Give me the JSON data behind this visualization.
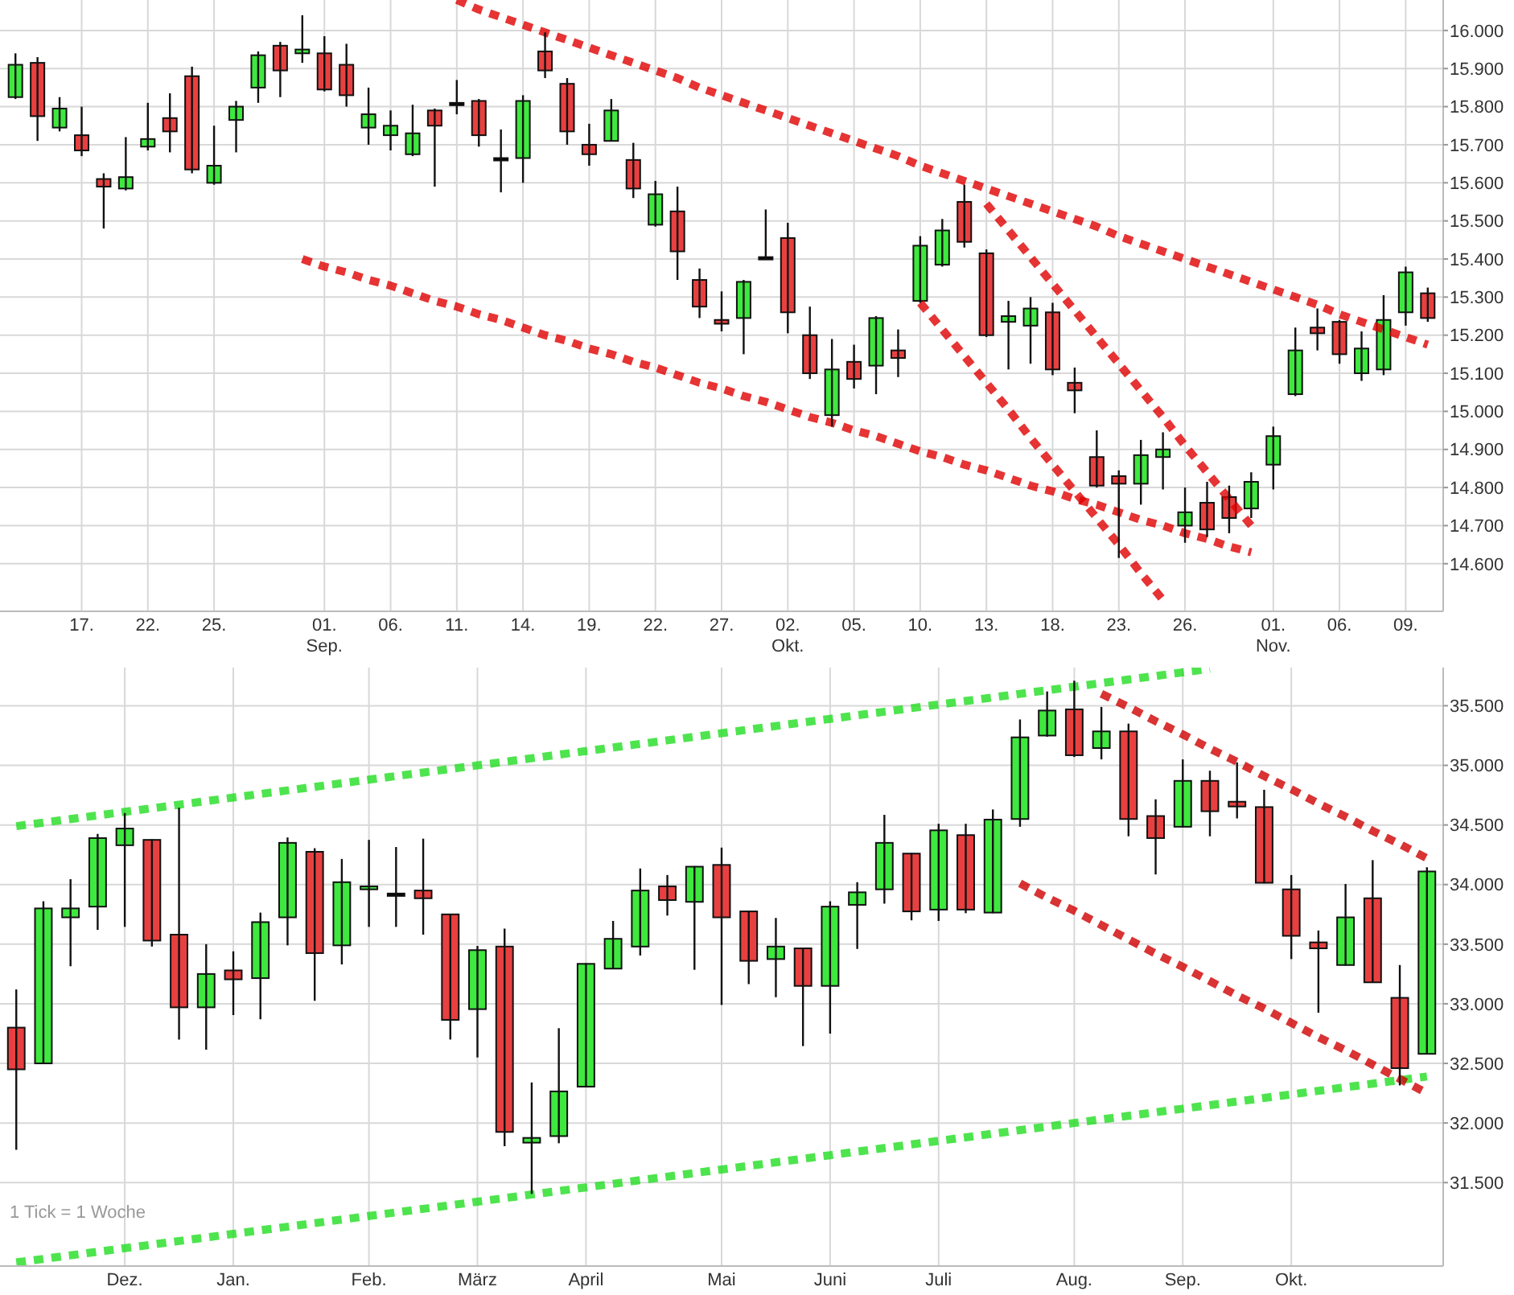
{
  "chart_data": [
    {
      "type": "candlestick",
      "categories": [
        null,
        null,
        null,
        "17.",
        null,
        null,
        "22.",
        null,
        null,
        "25.",
        null,
        null,
        null,
        null,
        "01.\nSep.",
        null,
        null,
        "06.",
        null,
        null,
        "11.",
        null,
        null,
        "14.",
        null,
        null,
        "19.",
        null,
        null,
        "22.",
        null,
        null,
        "27.",
        null,
        null,
        "02.\nOkt.",
        null,
        null,
        "05.",
        null,
        null,
        "10.",
        null,
        null,
        "13.",
        null,
        null,
        "18.",
        null,
        null,
        "23.",
        null,
        null,
        "26.",
        null,
        null,
        null,
        "01.\nNov.",
        null,
        null,
        "06.",
        null,
        null,
        "09.",
        null
      ],
      "ohlc": [
        [
          15825,
          15940,
          15820,
          15910
        ],
        [
          15915,
          15930,
          15710,
          15775
        ],
        [
          15745,
          15825,
          15735,
          15795
        ],
        [
          15725,
          15800,
          15670,
          15685
        ],
        [
          15610,
          15625,
          15480,
          15590
        ],
        [
          15585,
          15720,
          15580,
          15615
        ],
        [
          15695,
          15810,
          15685,
          15715
        ],
        [
          15770,
          15835,
          15680,
          15735
        ],
        [
          15880,
          15905,
          15625,
          15635
        ],
        [
          15600,
          15750,
          15595,
          15645
        ],
        [
          15765,
          15815,
          15680,
          15800
        ],
        [
          15850,
          15945,
          15810,
          15935
        ],
        [
          15960,
          15970,
          15825,
          15895
        ],
        [
          15940,
          16040,
          15915,
          15950
        ],
        [
          15940,
          15985,
          15840,
          15845
        ],
        [
          15910,
          15965,
          15800,
          15830
        ],
        [
          15745,
          15850,
          15700,
          15780
        ],
        [
          15725,
          15790,
          15685,
          15750
        ],
        [
          15675,
          15805,
          15670,
          15730
        ],
        [
          15790,
          15795,
          15590,
          15750
        ],
        [
          15810,
          15870,
          15780,
          15810
        ],
        [
          15815,
          15820,
          15695,
          15725
        ],
        [
          15665,
          15740,
          15575,
          15665
        ],
        [
          15665,
          15830,
          15600,
          15815
        ],
        [
          15945,
          15995,
          15875,
          15895
        ],
        [
          15860,
          15875,
          15700,
          15735
        ],
        [
          15700,
          15755,
          15645,
          15675
        ],
        [
          15710,
          15820,
          15710,
          15790
        ],
        [
          15660,
          15705,
          15560,
          15585
        ],
        [
          15490,
          15605,
          15485,
          15570
        ],
        [
          15525,
          15590,
          15345,
          15420
        ],
        [
          15345,
          15375,
          15245,
          15275
        ],
        [
          15240,
          15315,
          15210,
          15230
        ],
        [
          15245,
          15345,
          15150,
          15340
        ],
        [
          15405,
          15530,
          15400,
          15405
        ],
        [
          15455,
          15495,
          15205,
          15260
        ],
        [
          15200,
          15275,
          15085,
          15100
        ],
        [
          14990,
          15190,
          14960,
          15110
        ],
        [
          15130,
          15175,
          15060,
          15085
        ],
        [
          15120,
          15250,
          15045,
          15245
        ],
        [
          15160,
          15215,
          15090,
          15140
        ],
        [
          15290,
          15460,
          15285,
          15435
        ],
        [
          15385,
          15505,
          15380,
          15475
        ],
        [
          15550,
          15595,
          15430,
          15445
        ],
        [
          15415,
          15425,
          15195,
          15200
        ],
        [
          15235,
          15290,
          15110,
          15250
        ],
        [
          15225,
          15300,
          15125,
          15270
        ],
        [
          15260,
          15285,
          15095,
          15110
        ],
        [
          15075,
          15115,
          14995,
          15055
        ],
        [
          14880,
          14950,
          14800,
          14805
        ],
        [
          14830,
          14845,
          14615,
          14810
        ],
        [
          14810,
          14925,
          14755,
          14885
        ],
        [
          14880,
          14945,
          14795,
          14900
        ],
        [
          14700,
          14800,
          14655,
          14735
        ],
        [
          14760,
          14815,
          14670,
          14690
        ],
        [
          14775,
          14805,
          14680,
          14720
        ],
        [
          14745,
          14840,
          14720,
          14815
        ],
        [
          14860,
          14960,
          14795,
          14935
        ],
        [
          15045,
          15220,
          15040,
          15160
        ],
        [
          15220,
          15270,
          15160,
          15205
        ],
        [
          15235,
          15240,
          15125,
          15150
        ],
        [
          15100,
          15210,
          15080,
          15165
        ],
        [
          15110,
          15305,
          15095,
          15240
        ],
        [
          15260,
          15380,
          15225,
          15365
        ],
        [
          15310,
          15325,
          15235,
          15245
        ]
      ],
      "colors": [
        "#3ee83e",
        "#e84040",
        "#3ee83e",
        "#e84040",
        "#e84040",
        "#3ee83e",
        "#3ee83e",
        "#e84040",
        "#e84040",
        "#3ee83e",
        "#3ee83e",
        "#3ee83e",
        "#e84040",
        "#3ee83e",
        "#e84040",
        "#e84040",
        "#3ee83e",
        "#3ee83e",
        "#3ee83e",
        "#e84040",
        "#000000",
        "#e84040",
        "#000000",
        "#3ee83e",
        "#e84040",
        "#e84040",
        "#e84040",
        "#3ee83e",
        "#e84040",
        "#3ee83e",
        "#e84040",
        "#e84040",
        "#e84040",
        "#3ee83e",
        "#000000",
        "#e84040",
        "#e84040",
        "#3ee83e",
        "#e84040",
        "#3ee83e",
        "#e84040",
        "#3ee83e",
        "#3ee83e",
        "#e84040",
        "#e84040",
        "#3ee83e",
        "#3ee83e",
        "#e84040",
        "#e84040",
        "#e84040",
        "#e84040",
        "#3ee83e",
        "#3ee83e",
        "#3ee83e",
        "#e84040",
        "#e84040",
        "#3ee83e",
        "#3ee83e",
        "#3ee83e",
        "#e84040",
        "#e84040",
        "#3ee83e",
        "#3ee83e",
        "#3ee83e",
        "#e84040"
      ],
      "series": [
        {
          "type": "line",
          "color": "#e00000",
          "line_style": "dotted",
          "values": [
            null,
            null,
            null,
            null,
            null,
            null,
            null,
            null,
            null,
            null,
            null,
            null,
            null,
            null,
            null,
            null,
            null,
            null,
            null,
            null,
            16080,
            16055,
            16035,
            16015,
            15995,
            15975,
            15955,
            15935,
            15915,
            15895,
            15875,
            15850,
            15830,
            15810,
            15790,
            15770,
            15750,
            15730,
            15710,
            15690,
            15670,
            15645,
            15625,
            15605,
            15585,
            15565,
            15545,
            15525,
            15505,
            15485,
            15460,
            15440,
            15420,
            15400,
            15380,
            15360,
            15340,
            15320,
            15300,
            15280,
            15255,
            15235,
            15215,
            15195,
            15175
          ]
        },
        {
          "type": "line",
          "color": "#e00000",
          "line_style": "dotted",
          "values": [
            null,
            null,
            null,
            null,
            null,
            null,
            null,
            null,
            null,
            null,
            null,
            null,
            null,
            15400,
            15380,
            15365,
            15345,
            15330,
            15310,
            15290,
            15275,
            15255,
            15240,
            15220,
            15200,
            15185,
            15165,
            15150,
            15130,
            15115,
            15095,
            15075,
            15060,
            15040,
            15025,
            15005,
            14985,
            14970,
            14950,
            14935,
            14915,
            14895,
            14880,
            14860,
            14845,
            14825,
            14805,
            14790,
            14770,
            14755,
            14735,
            14715,
            14700,
            14680,
            14665,
            14645,
            14630,
            null,
            null,
            null,
            null,
            null,
            null,
            null,
            null
          ]
        },
        {
          "type": "line",
          "color": "#e00000",
          "line_style": "dotted",
          "values": [
            null,
            null,
            null,
            null,
            null,
            null,
            null,
            null,
            null,
            null,
            null,
            null,
            null,
            null,
            null,
            null,
            null,
            null,
            null,
            null,
            null,
            null,
            null,
            null,
            null,
            null,
            null,
            null,
            null,
            null,
            null,
            null,
            null,
            null,
            null,
            null,
            null,
            null,
            null,
            null,
            null,
            null,
            null,
            null,
            15545,
            15475,
            15405,
            15335,
            15265,
            15195,
            15125,
            15055,
            14985,
            14910,
            14840,
            14770,
            14700,
            null,
            null,
            null,
            null,
            null,
            null,
            null,
            null
          ]
        },
        {
          "type": "line",
          "color": "#e00000",
          "line_style": "dotted",
          "values": [
            null,
            null,
            null,
            null,
            null,
            null,
            null,
            null,
            null,
            null,
            null,
            null,
            null,
            null,
            null,
            null,
            null,
            null,
            null,
            null,
            null,
            null,
            null,
            null,
            null,
            null,
            null,
            null,
            null,
            null,
            null,
            null,
            null,
            null,
            null,
            null,
            null,
            null,
            null,
            null,
            null,
            15285,
            15215,
            15145,
            15075,
            15005,
            14930,
            14860,
            14790,
            14720,
            14650,
            14575,
            14505,
            null,
            null,
            null,
            null,
            null,
            null,
            null,
            null,
            null,
            null,
            null,
            null
          ]
        }
      ],
      "ylim": [
        14475,
        16080
      ],
      "yticks": [
        {
          "value": 14600,
          "label": "14.600"
        },
        {
          "value": 14700,
          "label": "14.700"
        },
        {
          "value": 14800,
          "label": "14.800"
        },
        {
          "value": 14900,
          "label": "14.900"
        },
        {
          "value": 15000,
          "label": "15.000"
        },
        {
          "value": 15100,
          "label": "15.100"
        },
        {
          "value": 15200,
          "label": "15.200"
        },
        {
          "value": 15300,
          "label": "15.300"
        },
        {
          "value": 15400,
          "label": "15.400"
        },
        {
          "value": 15500,
          "label": "15.500"
        },
        {
          "value": 15600,
          "label": "15.600"
        },
        {
          "value": 15700,
          "label": "15.700"
        },
        {
          "value": 15800,
          "label": "15.800"
        },
        {
          "value": 15900,
          "label": "15.900"
        },
        {
          "value": 16000,
          "label": "16.000"
        }
      ],
      "grid": true
    },
    {
      "type": "candlestick",
      "categories": [
        null,
        null,
        null,
        null,
        "Dez.",
        null,
        null,
        null,
        "Jan.",
        null,
        null,
        null,
        null,
        "Feb.",
        null,
        null,
        null,
        "März",
        null,
        null,
        null,
        "April",
        null,
        null,
        null,
        null,
        "Mai",
        null,
        null,
        null,
        "Juni",
        null,
        null,
        null,
        "Juli",
        null,
        null,
        null,
        null,
        "Aug.",
        null,
        null,
        null,
        "Sep.",
        null,
        null,
        null,
        "Okt.",
        null,
        null,
        null,
        null,
        null
      ],
      "ohlc": [
        [
          32800,
          33120,
          31775,
          32450
        ],
        [
          32500,
          33860,
          32495,
          33800
        ],
        [
          33725,
          34045,
          33315,
          33800
        ],
        [
          33815,
          34425,
          33620,
          34390
        ],
        [
          34330,
          34600,
          33645,
          34470
        ],
        [
          34375,
          34380,
          33480,
          33530
        ],
        [
          33580,
          34645,
          32700,
          32970
        ],
        [
          32970,
          33500,
          32615,
          33250
        ],
        [
          33280,
          33440,
          32905,
          33205
        ],
        [
          33215,
          33765,
          32870,
          33685
        ],
        [
          33725,
          34395,
          33490,
          34350
        ],
        [
          34275,
          34305,
          33025,
          33425
        ],
        [
          33490,
          34215,
          33330,
          34020
        ],
        [
          33960,
          34375,
          33645,
          33985
        ],
        [
          33925,
          34315,
          33645,
          33925
        ],
        [
          33950,
          34385,
          33580,
          33885
        ],
        [
          33750,
          33755,
          32700,
          32865
        ],
        [
          32955,
          33485,
          32550,
          33450
        ],
        [
          33480,
          33630,
          31805,
          31925
        ],
        [
          31835,
          32340,
          31405,
          31875
        ],
        [
          31890,
          32795,
          31830,
          32265
        ],
        [
          32305,
          33340,
          32300,
          33335
        ],
        [
          33295,
          33695,
          33290,
          33545
        ],
        [
          33480,
          34135,
          33405,
          33950
        ],
        [
          33985,
          34080,
          33740,
          33870
        ],
        [
          33855,
          34155,
          33285,
          34150
        ],
        [
          34165,
          34310,
          32990,
          33725
        ],
        [
          33775,
          33780,
          33165,
          33360
        ],
        [
          33375,
          33720,
          33055,
          33480
        ],
        [
          33465,
          33470,
          32645,
          33150
        ],
        [
          33150,
          33860,
          32750,
          33815
        ],
        [
          33830,
          34020,
          33460,
          33935
        ],
        [
          33960,
          34585,
          33840,
          34350
        ],
        [
          34260,
          34265,
          33700,
          33775
        ],
        [
          33790,
          34510,
          33695,
          34455
        ],
        [
          34415,
          34510,
          33760,
          33790
        ],
        [
          33765,
          34630,
          33760,
          34545
        ],
        [
          34550,
          35385,
          34485,
          35235
        ],
        [
          35250,
          35620,
          35240,
          35460
        ],
        [
          35470,
          35710,
          35070,
          35085
        ],
        [
          35145,
          35490,
          35050,
          35285
        ],
        [
          35285,
          35350,
          34405,
          34550
        ],
        [
          34575,
          34715,
          34085,
          34390
        ],
        [
          34485,
          35050,
          34480,
          34870
        ],
        [
          34870,
          34955,
          34405,
          34615
        ],
        [
          34695,
          35025,
          34555,
          34655
        ],
        [
          34650,
          34795,
          34010,
          34015
        ],
        [
          33960,
          34080,
          33375,
          33570
        ],
        [
          33515,
          33615,
          32925,
          33465
        ],
        [
          33325,
          34005,
          33320,
          33725
        ],
        [
          33885,
          34205,
          33175,
          33180
        ],
        [
          33050,
          33325,
          32315,
          32460
        ],
        [
          32580,
          34145,
          32575,
          34110
        ]
      ],
      "colors": [
        "#e84040",
        "#3ee83e",
        "#3ee83e",
        "#3ee83e",
        "#3ee83e",
        "#e84040",
        "#e84040",
        "#3ee83e",
        "#e84040",
        "#3ee83e",
        "#3ee83e",
        "#e84040",
        "#3ee83e",
        "#3ee83e",
        "#000000",
        "#e84040",
        "#e84040",
        "#3ee83e",
        "#e84040",
        "#3ee83e",
        "#3ee83e",
        "#3ee83e",
        "#3ee83e",
        "#3ee83e",
        "#e84040",
        "#3ee83e",
        "#e84040",
        "#e84040",
        "#3ee83e",
        "#e84040",
        "#3ee83e",
        "#3ee83e",
        "#3ee83e",
        "#e84040",
        "#3ee83e",
        "#e84040",
        "#3ee83e",
        "#3ee83e",
        "#3ee83e",
        "#e84040",
        "#3ee83e",
        "#e84040",
        "#e84040",
        "#3ee83e",
        "#e84040",
        "#e84040",
        "#e84040",
        "#e84040",
        "#e84040",
        "#3ee83e",
        "#e84040",
        "#e84040",
        "#3ee83e"
      ],
      "series": [
        {
          "type": "line",
          "color": "#22dd22",
          "line_style": "dotted",
          "values": [
            34490,
            34520,
            34550,
            34580,
            34610,
            34640,
            34670,
            34700,
            34730,
            34760,
            34790,
            34820,
            34850,
            34880,
            34910,
            34940,
            34970,
            35000,
            35030,
            35060,
            35090,
            35120,
            35150,
            35180,
            35210,
            35240,
            35270,
            35300,
            35330,
            35360,
            35390,
            35420,
            35450,
            35480,
            35510,
            35540,
            35570,
            35600,
            35630,
            35660,
            35690,
            35720,
            35750,
            35780,
            35810,
            null,
            null,
            null,
            null,
            null,
            null,
            null,
            null
          ]
        },
        {
          "type": "line",
          "color": "#22dd22",
          "line_style": "dotted",
          "values": [
            30830,
            30860,
            30890,
            30920,
            30950,
            30980,
            31010,
            31040,
            31070,
            31100,
            31130,
            31160,
            31190,
            31220,
            31250,
            31280,
            31310,
            31340,
            31370,
            31400,
            31430,
            31460,
            31490,
            31520,
            31550,
            31580,
            31610,
            31640,
            31670,
            31700,
            31730,
            31760,
            31790,
            31820,
            31850,
            31880,
            31910,
            31940,
            31970,
            32000,
            32030,
            32060,
            32090,
            32120,
            32150,
            32180,
            32210,
            32240,
            32270,
            32300,
            32330,
            32360,
            32390
          ]
        },
        {
          "type": "line",
          "color": "#d00000",
          "line_style": "dotted",
          "values": [
            null,
            null,
            null,
            null,
            null,
            null,
            null,
            null,
            null,
            null,
            null,
            null,
            null,
            null,
            null,
            null,
            null,
            null,
            null,
            null,
            null,
            null,
            null,
            null,
            null,
            null,
            null,
            null,
            null,
            null,
            null,
            null,
            null,
            null,
            null,
            null,
            null,
            null,
            null,
            null,
            35600,
            35490,
            35370,
            35260,
            35140,
            35030,
            34910,
            34800,
            34680,
            34570,
            34450,
            34340,
            34220
          ]
        },
        {
          "type": "line",
          "color": "#d00000",
          "line_style": "dotted",
          "values": [
            null,
            null,
            null,
            null,
            null,
            null,
            null,
            null,
            null,
            null,
            null,
            null,
            null,
            null,
            null,
            null,
            null,
            null,
            null,
            null,
            null,
            null,
            null,
            null,
            null,
            null,
            null,
            null,
            null,
            null,
            null,
            null,
            null,
            null,
            null,
            null,
            null,
            34010,
            33890,
            33780,
            33660,
            33540,
            33420,
            33310,
            33190,
            33070,
            32960,
            32840,
            32720,
            32610,
            32490,
            32370,
            32250
          ]
        }
      ],
      "ylim": [
        30800,
        35820
      ],
      "yticks": [
        {
          "value": 31500,
          "label": "31.500"
        },
        {
          "value": 32000,
          "label": "32.000"
        },
        {
          "value": 32500,
          "label": "32.500"
        },
        {
          "value": 33000,
          "label": "33.000"
        },
        {
          "value": 33500,
          "label": "33.500"
        },
        {
          "value": 34000,
          "label": "34.000"
        },
        {
          "value": 34500,
          "label": "34.500"
        },
        {
          "value": 35000,
          "label": "35.000"
        },
        {
          "value": 35500,
          "label": "35.500"
        }
      ],
      "grid": true,
      "annotations": [
        "1 Tick = 1 Woche"
      ]
    }
  ]
}
